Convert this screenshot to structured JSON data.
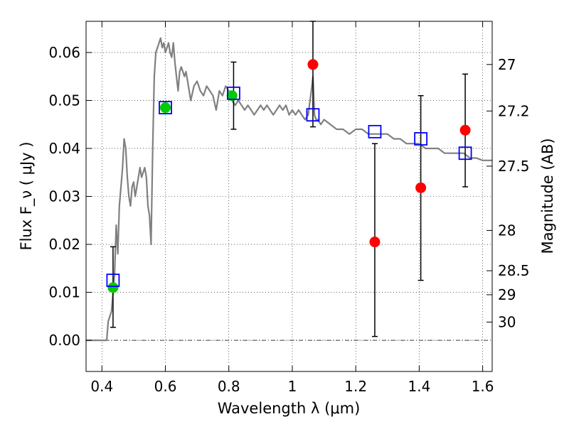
{
  "chart_data": {
    "type": "scatter",
    "xlabel": "Wavelength  λ (μm)",
    "ylabel": "Flux  F_ν  ( μJy )",
    "y2label": "Magnitude (AB)",
    "xlim": [
      0.35,
      1.63
    ],
    "ylim": [
      -0.0065,
      0.0665
    ],
    "grid": true,
    "x_ticks": [
      0.4,
      0.6,
      0.8,
      1.0,
      1.2,
      1.4,
      1.6
    ],
    "x_tick_labels": [
      "0.4",
      "0.6",
      "0.8",
      "1",
      "1.2",
      "1.4",
      "1.6"
    ],
    "y_ticks": [
      0.0,
      0.01,
      0.02,
      0.03,
      0.04,
      0.05,
      0.06
    ],
    "y_tick_labels": [
      "0.00",
      "0.01",
      "0.02",
      "0.03",
      "0.04",
      "0.05",
      "0.06"
    ],
    "y2_ticks": [
      {
        "label": "27",
        "flux": 0.0575
      },
      {
        "label": "27.2",
        "flux": 0.0478
      },
      {
        "label": "27.5",
        "flux": 0.0363
      },
      {
        "label": "28",
        "flux": 0.0229
      },
      {
        "label": "28.5",
        "flux": 0.0145
      },
      {
        "label": "29",
        "flux": 0.0095
      },
      {
        "label": "30",
        "flux": 0.0038
      }
    ],
    "series": [
      {
        "kind": "line",
        "color": "#808080",
        "x": [
          0.35,
          0.415,
          0.42,
          0.43,
          0.44,
          0.445,
          0.45,
          0.455,
          0.46,
          0.465,
          0.47,
          0.475,
          0.48,
          0.485,
          0.49,
          0.495,
          0.5,
          0.505,
          0.51,
          0.515,
          0.52,
          0.525,
          0.53,
          0.535,
          0.54,
          0.545,
          0.55,
          0.555,
          0.56,
          0.565,
          0.57,
          0.575,
          0.58,
          0.585,
          0.59,
          0.595,
          0.6,
          0.605,
          0.61,
          0.615,
          0.62,
          0.625,
          0.63,
          0.635,
          0.64,
          0.645,
          0.65,
          0.655,
          0.66,
          0.665,
          0.67,
          0.675,
          0.68,
          0.69,
          0.7,
          0.71,
          0.72,
          0.73,
          0.74,
          0.75,
          0.76,
          0.77,
          0.78,
          0.79,
          0.8,
          0.81,
          0.82,
          0.83,
          0.84,
          0.85,
          0.86,
          0.87,
          0.88,
          0.89,
          0.9,
          0.91,
          0.92,
          0.93,
          0.94,
          0.95,
          0.96,
          0.97,
          0.98,
          0.99,
          1.0,
          1.01,
          1.02,
          1.03,
          1.04,
          1.05,
          1.06,
          1.065,
          1.07,
          1.075,
          1.08,
          1.09,
          1.1,
          1.12,
          1.14,
          1.16,
          1.18,
          1.2,
          1.22,
          1.24,
          1.26,
          1.28,
          1.3,
          1.32,
          1.34,
          1.36,
          1.38,
          1.4,
          1.42,
          1.44,
          1.46,
          1.48,
          1.5,
          1.52,
          1.54,
          1.56,
          1.58,
          1.6,
          1.62,
          1.63
        ],
        "y": [
          0.0,
          0.0,
          0.004,
          0.006,
          0.014,
          0.024,
          0.018,
          0.028,
          0.032,
          0.036,
          0.042,
          0.04,
          0.034,
          0.03,
          0.028,
          0.032,
          0.033,
          0.03,
          0.032,
          0.034,
          0.036,
          0.034,
          0.035,
          0.036,
          0.034,
          0.028,
          0.026,
          0.02,
          0.04,
          0.055,
          0.06,
          0.061,
          0.062,
          0.063,
          0.061,
          0.062,
          0.06,
          0.061,
          0.062,
          0.06,
          0.059,
          0.062,
          0.058,
          0.055,
          0.052,
          0.056,
          0.057,
          0.056,
          0.055,
          0.056,
          0.054,
          0.052,
          0.05,
          0.053,
          0.054,
          0.052,
          0.051,
          0.053,
          0.052,
          0.051,
          0.048,
          0.052,
          0.051,
          0.053,
          0.052,
          0.05,
          0.049,
          0.05,
          0.049,
          0.048,
          0.049,
          0.048,
          0.047,
          0.048,
          0.049,
          0.048,
          0.049,
          0.048,
          0.047,
          0.048,
          0.049,
          0.048,
          0.049,
          0.047,
          0.048,
          0.047,
          0.048,
          0.047,
          0.046,
          0.047,
          0.052,
          0.055,
          0.047,
          0.046,
          0.046,
          0.045,
          0.046,
          0.045,
          0.044,
          0.044,
          0.043,
          0.044,
          0.044,
          0.043,
          0.043,
          0.043,
          0.043,
          0.042,
          0.042,
          0.041,
          0.041,
          0.041,
          0.04,
          0.04,
          0.04,
          0.039,
          0.039,
          0.039,
          0.039,
          0.038,
          0.038,
          0.0375,
          0.0375,
          0.0375
        ]
      },
      {
        "kind": "model-squares",
        "color": "#0000ff",
        "x": [
          0.435,
          0.6,
          0.815,
          1.065,
          1.26,
          1.405,
          1.545
        ],
        "y": [
          0.0125,
          0.0485,
          0.0515,
          0.047,
          0.0435,
          0.042,
          0.039
        ]
      },
      {
        "kind": "detections",
        "color": "#00cc00",
        "x": [
          0.435,
          0.6,
          0.81
        ],
        "y": [
          0.011,
          0.0485,
          0.051
        ]
      },
      {
        "kind": "upper-limits",
        "color": "#ff0000",
        "x": [
          1.065,
          1.26,
          1.405,
          1.545
        ],
        "y": [
          0.0575,
          0.0205,
          0.0318,
          0.0438
        ]
      },
      {
        "kind": "errorbars",
        "color": "#000000",
        "x": [
          0.435,
          0.815,
          1.065,
          1.26,
          1.405,
          1.545
        ],
        "ylo": [
          0.0027,
          0.044,
          0.0445,
          0.0008,
          0.0125,
          0.032
        ],
        "yhi": [
          0.0195,
          0.058,
          0.0665,
          0.041,
          0.051,
          0.0555
        ]
      }
    ]
  }
}
